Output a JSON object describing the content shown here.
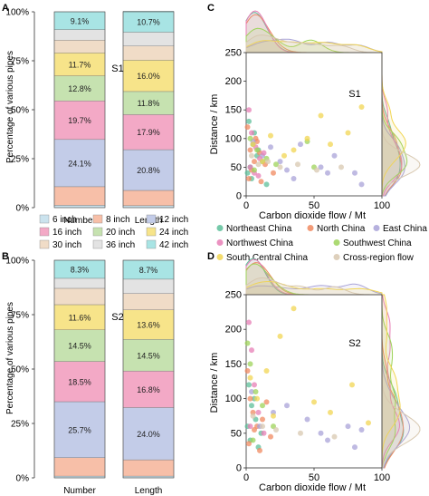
{
  "panel_letters": [
    "A",
    "C",
    "B",
    "D"
  ],
  "legend_pipes": {
    "entries": [
      "6 inch",
      "8 inch",
      "12 inch",
      "16 inch",
      "20 inch",
      "24 inch",
      "30 inch",
      "36 inch",
      "42 inch"
    ],
    "colors": [
      "#cbe3ee",
      "#f7bfa8",
      "#c3cce8",
      "#f3a9c6",
      "#c6e2b0",
      "#f7e48a",
      "#f0dcc7",
      "#e3e3e3",
      "#a8e4e4"
    ]
  },
  "legend_regions": {
    "entries": [
      "Northeast China",
      "North China",
      "East China",
      "Northwest China",
      "Southwest China",
      "South Central China",
      "Cross-region flow"
    ],
    "colors": [
      "#5dbf9a",
      "#f08a60",
      "#a9a3d8",
      "#e77fb6",
      "#9ed35a",
      "#f2d653",
      "#d8c8b0"
    ]
  },
  "chart_data": [
    {
      "id": "A",
      "type": "bar",
      "stacked": true,
      "label": "S1",
      "ylabel": "Percentage of various pipes",
      "yticks": [
        "0%",
        "25%",
        "50%",
        "75%",
        "100%"
      ],
      "ylim": [
        0,
        100
      ],
      "categories": [
        "Number",
        "Length"
      ],
      "series": [
        {
          "name": "6 inch",
          "values": [
            1.2,
            1.0
          ]
        },
        {
          "name": "8 inch",
          "values": [
            9.5,
            7.8
          ]
        },
        {
          "name": "12 inch",
          "values": [
            24.1,
            20.8
          ]
        },
        {
          "name": "16 inch",
          "values": [
            19.7,
            17.9
          ]
        },
        {
          "name": "20 inch",
          "values": [
            12.8,
            11.8
          ]
        },
        {
          "name": "24 inch",
          "values": [
            11.7,
            16.0
          ]
        },
        {
          "name": "30 inch",
          "values": [
            6.5,
            7.2
          ]
        },
        {
          "name": "36 inch",
          "values": [
            5.4,
            7.1
          ]
        },
        {
          "name": "42 inch",
          "values": [
            9.1,
            10.7
          ]
        }
      ],
      "data_labels": [
        {
          "series": "12 inch",
          "values": [
            "24.1%",
            "20.8%"
          ]
        },
        {
          "series": "16 inch",
          "values": [
            "19.7%",
            "17.9%"
          ]
        },
        {
          "series": "20 inch",
          "values": [
            "12.8%",
            "11.8%"
          ]
        },
        {
          "series": "24 inch",
          "values": [
            "11.7%",
            "16.0%"
          ]
        },
        {
          "series": "42 inch",
          "values": [
            "9.1%",
            "10.7%"
          ]
        }
      ]
    },
    {
      "id": "B",
      "type": "bar",
      "stacked": true,
      "label": "S2",
      "ylabel": "Percentage of various pipes",
      "yticks": [
        "0%",
        "25%",
        "50%",
        "75%",
        "100%"
      ],
      "ylim": [
        0,
        100
      ],
      "categories": [
        "Number",
        "Length"
      ],
      "series": [
        {
          "name": "6 inch",
          "values": [
            0.8,
            0.8
          ]
        },
        {
          "name": "8 inch",
          "values": [
            8.5,
            7.5
          ]
        },
        {
          "name": "12 inch",
          "values": [
            25.7,
            24.0
          ]
        },
        {
          "name": "16 inch",
          "values": [
            18.5,
            16.8
          ]
        },
        {
          "name": "20 inch",
          "values": [
            14.5,
            14.5
          ]
        },
        {
          "name": "24 inch",
          "values": [
            11.6,
            13.6
          ]
        },
        {
          "name": "30 inch",
          "values": [
            7.5,
            7.5
          ]
        },
        {
          "name": "36 inch",
          "values": [
            4.6,
            6.6
          ]
        },
        {
          "name": "42 inch",
          "values": [
            8.3,
            8.7
          ]
        }
      ],
      "data_labels": [
        {
          "series": "12 inch",
          "values": [
            "25.7%",
            "24.0%"
          ]
        },
        {
          "series": "16 inch",
          "values": [
            "18.5%",
            "16.8%"
          ]
        },
        {
          "series": "20 inch",
          "values": [
            "14.5%",
            "14.5%"
          ]
        },
        {
          "series": "24 inch",
          "values": [
            "11.6%",
            "13.6%"
          ]
        },
        {
          "series": "42 inch",
          "values": [
            "8.3%",
            "8.7%"
          ]
        }
      ]
    },
    {
      "id": "C",
      "type": "scatter",
      "label": "S1",
      "xlabel": "Carbon dioxide flow / Mt",
      "ylabel": "Distance / km",
      "xlim": [
        0,
        100
      ],
      "ylim": [
        0,
        250
      ],
      "xticks": [
        0,
        50,
        100
      ],
      "yticks": [
        0,
        50,
        100,
        150,
        200,
        250
      ],
      "marginals": true,
      "series": [
        {
          "name": "Northeast China",
          "x": [
            2,
            5,
            8,
            3,
            12,
            6,
            1,
            4,
            9,
            15
          ],
          "y": [
            130,
            90,
            70,
            50,
            60,
            110,
            40,
            30,
            80,
            20
          ]
        },
        {
          "name": "North China",
          "x": [
            1,
            3,
            6,
            10,
            4,
            8,
            14,
            20,
            2,
            7,
            11
          ],
          "y": [
            120,
            80,
            60,
            75,
            45,
            95,
            55,
            40,
            30,
            100,
            25
          ]
        },
        {
          "name": "East China",
          "x": [
            5,
            12,
            18,
            25,
            30,
            40,
            55,
            65,
            80,
            85,
            35,
            60
          ],
          "y": [
            95,
            70,
            85,
            60,
            45,
            90,
            50,
            70,
            40,
            20,
            30,
            40
          ]
        },
        {
          "name": "Northwest China",
          "x": [
            2,
            4,
            7,
            10,
            3,
            6,
            9,
            13
          ],
          "y": [
            150,
            110,
            85,
            65,
            50,
            40,
            35,
            75
          ]
        },
        {
          "name": "Southwest China",
          "x": [
            3,
            8,
            15,
            22,
            45,
            50,
            6
          ],
          "y": [
            100,
            80,
            65,
            55,
            95,
            50,
            45
          ]
        },
        {
          "name": "South Central China",
          "x": [
            5,
            18,
            35,
            45,
            55,
            62,
            75,
            85,
            12,
            28
          ],
          "y": [
            90,
            105,
            80,
            100,
            140,
            90,
            110,
            155,
            60,
            70
          ]
        },
        {
          "name": "Cross-region flow",
          "x": [
            4,
            9,
            16,
            25,
            38,
            52,
            70
          ],
          "y": [
            70,
            55,
            60,
            50,
            55,
            45,
            50
          ]
        }
      ]
    },
    {
      "id": "D",
      "type": "scatter",
      "label": "S2",
      "xlabel": "Carbon dioxide flow / Mt",
      "ylabel": "Distance / km",
      "xlim": [
        0,
        100
      ],
      "ylim": [
        0,
        250
      ],
      "xticks": [
        0,
        50,
        100
      ],
      "yticks": [
        0,
        50,
        100,
        150,
        200,
        250
      ],
      "marginals": true,
      "series": [
        {
          "name": "Northeast China",
          "x": [
            2,
            4,
            7,
            11,
            3,
            6,
            9,
            1
          ],
          "y": [
            120,
            90,
            70,
            50,
            40,
            100,
            30,
            60
          ]
        },
        {
          "name": "North China",
          "x": [
            1,
            3,
            5,
            8,
            12,
            18,
            2,
            6,
            10,
            15
          ],
          "y": [
            140,
            100,
            80,
            60,
            70,
            45,
            35,
            55,
            25,
            95
          ]
        },
        {
          "name": "East China",
          "x": [
            4,
            10,
            20,
            30,
            45,
            55,
            60,
            75,
            80,
            85
          ],
          "y": [
            110,
            60,
            80,
            90,
            70,
            50,
            40,
            60,
            30,
            55
          ]
        },
        {
          "name": "Northwest China",
          "x": [
            2,
            4,
            6,
            9,
            13,
            3
          ],
          "y": [
            210,
            170,
            120,
            80,
            50,
            60
          ]
        },
        {
          "name": "Southwest China",
          "x": [
            1,
            3,
            7,
            12,
            20,
            5
          ],
          "y": [
            180,
            150,
            110,
            90,
            60,
            40
          ]
        },
        {
          "name": "South Central China",
          "x": [
            3,
            8,
            15,
            25,
            35,
            50,
            62,
            78,
            90,
            20
          ],
          "y": [
            130,
            100,
            140,
            190,
            230,
            95,
            80,
            120,
            65,
            75
          ]
        },
        {
          "name": "Cross-region flow",
          "x": [
            5,
            12,
            22,
            40,
            65
          ],
          "y": [
            75,
            60,
            55,
            50,
            45
          ]
        }
      ]
    }
  ]
}
